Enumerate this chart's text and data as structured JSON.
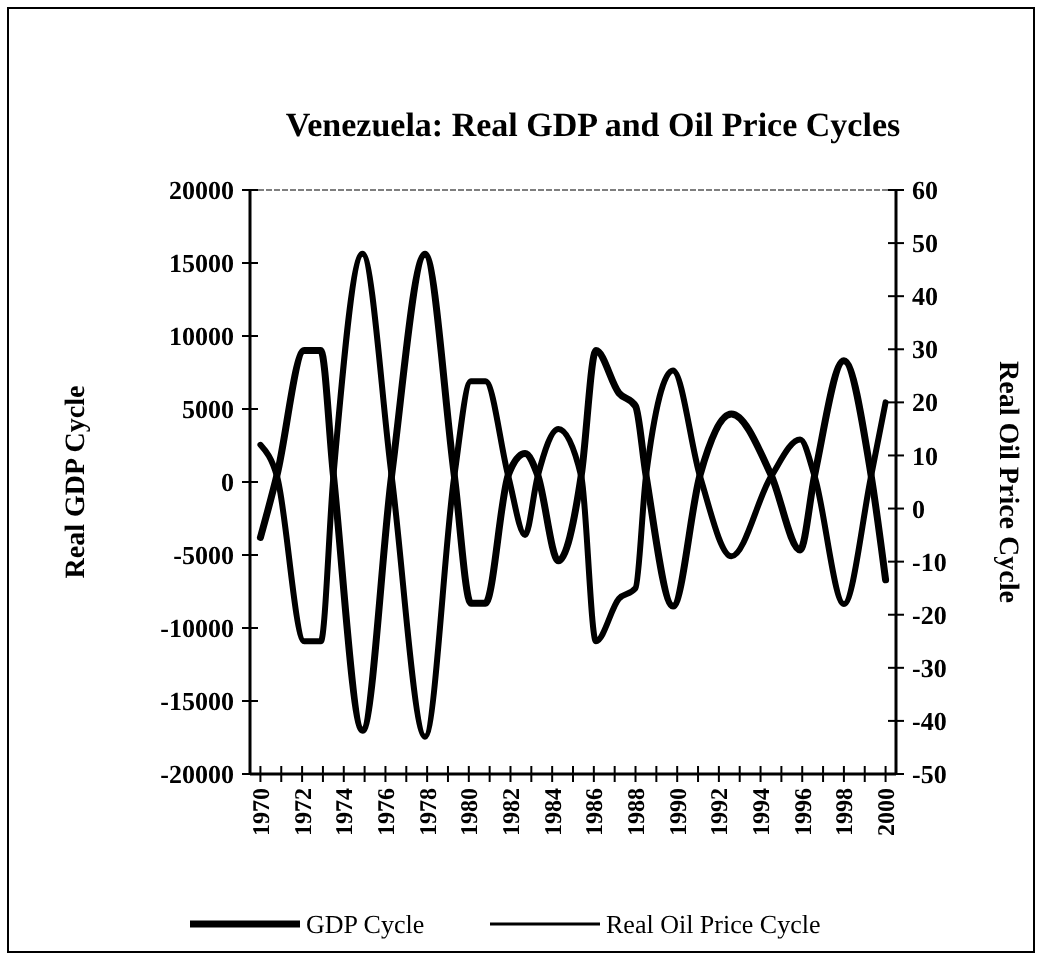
{
  "chart_data": {
    "type": "line",
    "title": "Venezuela: Real GDP and Oil Price Cycles",
    "ylabel": "Real GDP Cycle",
    "y2label": "Real Oil Price Cycle",
    "xlim": [
      1969.5,
      2000.5
    ],
    "xticks": [
      1970,
      {
        "value": 1971,
        "label": null
      },
      1972,
      {
        "value": 1973,
        "label": null
      },
      1974,
      {
        "value": 1975,
        "label": null
      },
      1976,
      {
        "value": 1977,
        "label": null
      },
      1978,
      {
        "value": 1979,
        "label": null
      },
      1980,
      {
        "value": 1981,
        "label": null
      },
      1982,
      {
        "value": 1983,
        "label": null
      },
      1984,
      {
        "value": 1985,
        "label": null
      },
      1986,
      {
        "value": 1987,
        "label": null
      },
      1988,
      {
        "value": 1989,
        "label": null
      },
      1990,
      {
        "value": 1991,
        "label": null
      },
      1992,
      {
        "value": 1993,
        "label": null
      },
      1994,
      {
        "value": 1995,
        "label": null
      },
      1996,
      {
        "value": 1997,
        "label": null
      },
      1998,
      {
        "value": 1999,
        "label": null
      },
      2000
    ],
    "ylim": [
      -20000,
      20000
    ],
    "yticks": [
      -20000,
      -15000,
      -10000,
      -5000,
      0,
      5000,
      10000,
      15000,
      20000
    ],
    "y2lim": [
      -50,
      60
    ],
    "y2ticks": [
      -50,
      -40,
      -30,
      -20,
      -10,
      0,
      10,
      20,
      30,
      40,
      50,
      60
    ],
    "grid": false,
    "legend": "bottom",
    "marker": "none",
    "line_style": "solid",
    "series": [
      {
        "name": "GDP Cycle",
        "color": "#000000",
        "x": [
          1970,
          1970.8,
          1972.1,
          1972.9,
          1973.5,
          1974.9,
          1976.3,
          1977.9,
          1979.3,
          1980.1,
          1980.8,
          1981.9,
          1982.7,
          1983.3,
          1984.3,
          1985.4,
          1986.1,
          1987.2,
          1988,
          1988.5,
          1989.8,
          1991.1,
          1992.6,
          1994.5,
          1995.9,
          1996.6,
          1998,
          1999.3,
          2000
        ],
        "values": [
          -3800,
          500,
          9000,
          9000,
          500,
          -17000,
          500,
          15600,
          500,
          -8300,
          -8300,
          500,
          1950,
          500,
          -5400,
          500,
          9000,
          6100,
          5200,
          500,
          -8500,
          500,
          4650,
          500,
          -4650,
          500,
          8300,
          500,
          -6700
        ]
      },
      {
        "name": "Real Oil Price Cycle",
        "color": "#000000",
        "axis": "y2",
        "x": [
          1970,
          1970.8,
          1972.1,
          1972.9,
          1973.5,
          1974.9,
          1976.3,
          1977.9,
          1979.3,
          1980.1,
          1980.8,
          1981.9,
          1982.7,
          1983.3,
          1984.3,
          1985.4,
          1986.1,
          1987.2,
          1988,
          1988.5,
          1989.8,
          1991.1,
          1992.6,
          1994.5,
          1995.9,
          1996.6,
          1998,
          1999.3,
          2000
        ],
        "values": [
          12,
          6,
          -25,
          -25,
          6,
          48,
          6,
          -43,
          6,
          24,
          24,
          6,
          -5,
          6,
          15,
          6,
          -25,
          -17,
          -15,
          6,
          26,
          6,
          -9,
          6,
          13,
          6,
          -18,
          6,
          20
        ]
      }
    ]
  }
}
